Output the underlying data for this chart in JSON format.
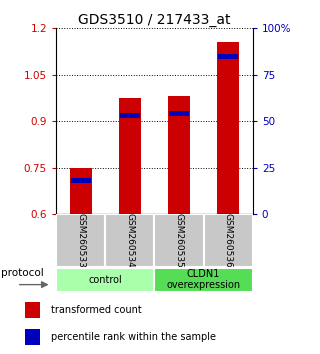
{
  "title": "GDS3510 / 217433_at",
  "samples": [
    "GSM260533",
    "GSM260534",
    "GSM260535",
    "GSM260536"
  ],
  "red_values": [
    0.749,
    0.975,
    0.981,
    1.155
  ],
  "blue_values": [
    0.71,
    0.92,
    0.926,
    1.108
  ],
  "ymin": 0.6,
  "ymax": 1.2,
  "yticks_left": [
    0.6,
    0.75,
    0.9,
    1.05,
    1.2
  ],
  "yticks_right": [
    0,
    25,
    50,
    75,
    100
  ],
  "bar_base": 0.6,
  "groups": [
    {
      "label": "control",
      "samples": [
        0,
        1
      ],
      "color": "#aaffaa"
    },
    {
      "label": "CLDN1\noverexpression",
      "samples": [
        2,
        3
      ],
      "color": "#55dd55"
    }
  ],
  "protocol_label": "protocol",
  "legend_red": "transformed count",
  "legend_blue": "percentile rank within the sample",
  "bar_color_red": "#cc0000",
  "bar_color_blue": "#0000bb",
  "sample_label_bg": "#c8c8c8",
  "title_fontsize": 10,
  "axis_label_color_left": "#cc0000",
  "axis_label_color_right": "#0000bb"
}
